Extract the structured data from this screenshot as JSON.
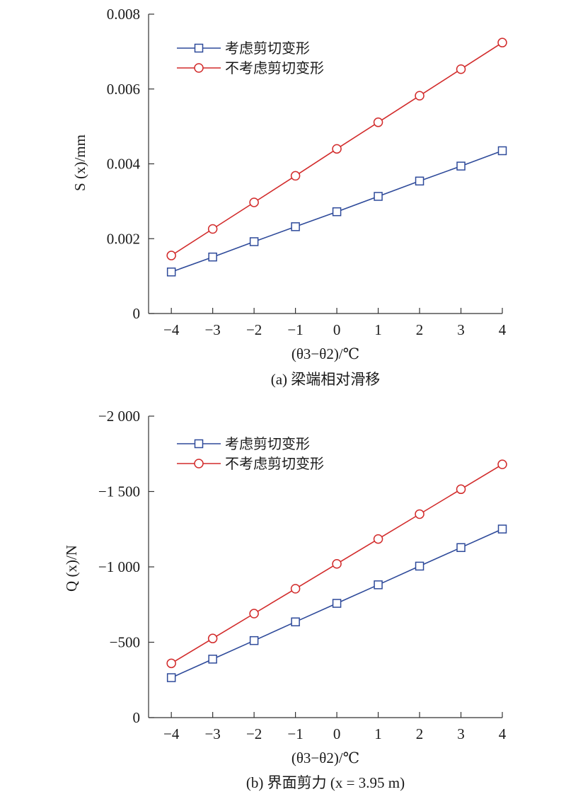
{
  "chart_data": [
    {
      "type": "line",
      "caption": "(a) 梁端相对滑移",
      "xlabel": "(θ3−θ2)/℃",
      "ylabel": "S (x)/mm",
      "x": [
        -4,
        -3,
        -2,
        -1,
        0,
        1,
        2,
        3,
        4
      ],
      "x_tick_labels": [
        "−4",
        "−3",
        "−2",
        "−1",
        "0",
        "1",
        "2",
        "3",
        "4"
      ],
      "xlim": [
        -4.55,
        4
      ],
      "ylim": [
        0,
        0.008
      ],
      "y_ticks": [
        0,
        0.002,
        0.004,
        0.006,
        0.008
      ],
      "y_tick_labels": [
        "0",
        "0.002",
        "0.004",
        "0.006",
        "0.008"
      ],
      "grid": false,
      "legend_position": "top-left",
      "series": [
        {
          "name": "考虑剪切变形",
          "color": "#2e4a9a",
          "marker": "square",
          "values": [
            0.00111,
            0.00151,
            0.00192,
            0.00232,
            0.00272,
            0.00313,
            0.00354,
            0.00394,
            0.00435
          ]
        },
        {
          "name": "不考虑剪切变形",
          "color": "#d22b2b",
          "marker": "circle",
          "values": [
            0.00155,
            0.00226,
            0.00297,
            0.00368,
            0.0044,
            0.00511,
            0.00582,
            0.00653,
            0.00724
          ]
        }
      ]
    },
    {
      "type": "line",
      "caption": "(b) 界面剪力 (x = 3.95 m)",
      "xlabel": "(θ3−θ2)/℃",
      "ylabel": "Q (x)/N",
      "x": [
        -4,
        -3,
        -2,
        -1,
        0,
        1,
        2,
        3,
        4
      ],
      "x_tick_labels": [
        "−4",
        "−3",
        "−2",
        "−1",
        "0",
        "1",
        "2",
        "3",
        "4"
      ],
      "xlim": [
        -4.55,
        4
      ],
      "ylim": [
        0,
        -2000
      ],
      "y_ticks": [
        0,
        -500,
        -1000,
        -1500,
        -2000
      ],
      "y_tick_labels": [
        "0",
        "−500",
        "−1 000",
        "−1 500",
        "−2 000"
      ],
      "grid": false,
      "legend_position": "top-left",
      "series": [
        {
          "name": "考虑剪切变形",
          "color": "#2e4a9a",
          "marker": "square",
          "values": [
            -265,
            -388,
            -511,
            -635,
            -758,
            -881,
            -1005,
            -1128,
            -1251
          ]
        },
        {
          "name": "不考虑剪切变形",
          "color": "#d22b2b",
          "marker": "circle",
          "values": [
            -360,
            -525,
            -690,
            -855,
            -1020,
            -1185,
            -1350,
            -1515,
            -1680
          ]
        }
      ]
    }
  ]
}
